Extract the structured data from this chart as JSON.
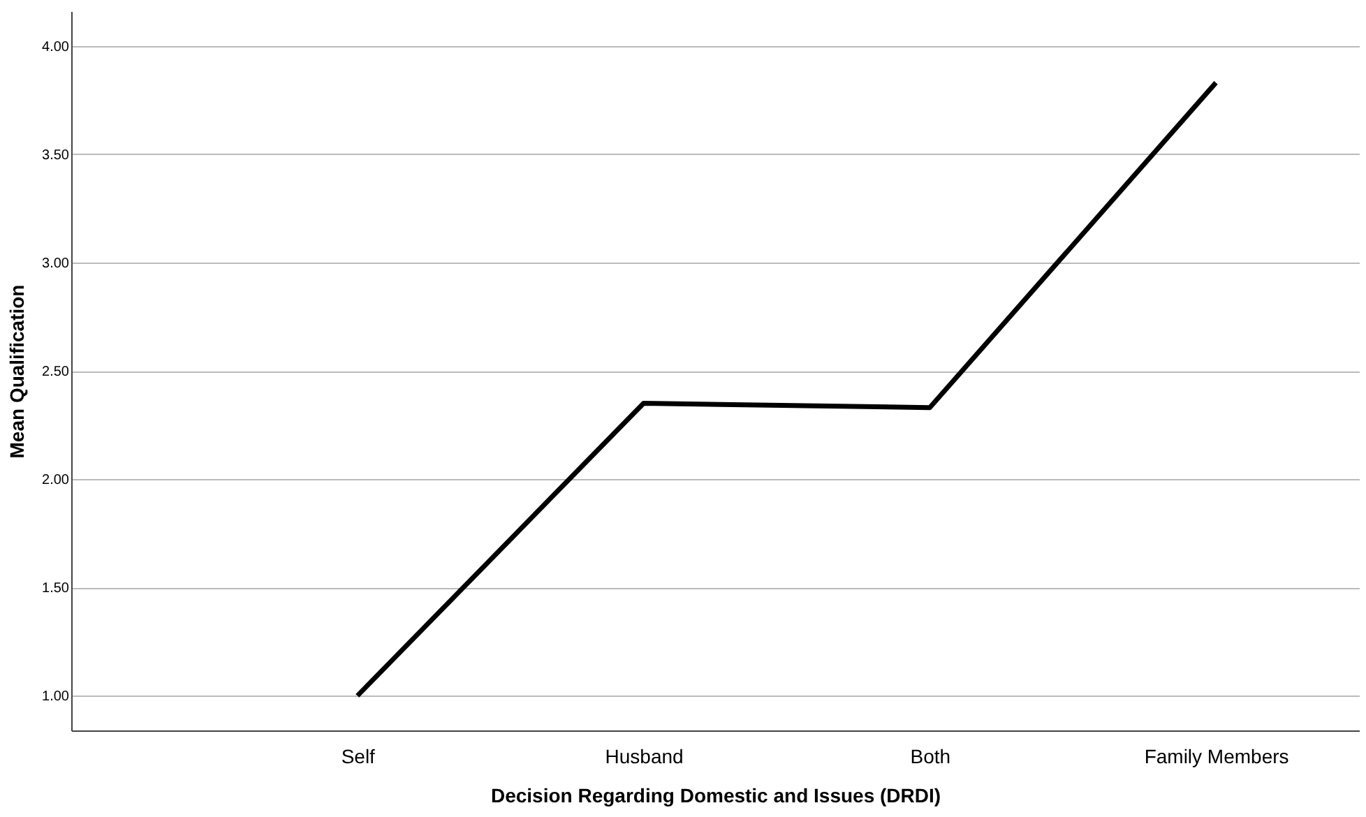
{
  "chart_data": {
    "type": "line",
    "xlabel": "Decision Regarding Domestic and Issues (DRDI)",
    "ylabel": "Mean Qualification",
    "categories": [
      "Self",
      "Husband",
      "Both",
      "Family Members"
    ],
    "series": [
      {
        "color": "#000000",
        "values": [
          1.0,
          2.35,
          2.33,
          3.83
        ]
      }
    ],
    "ylim": [
      0.84,
      4.16
    ],
    "yticks": [
      {
        "value": 1,
        "label": "1.00"
      },
      {
        "value": 1.5,
        "label": "1.50"
      },
      {
        "value": 2,
        "label": "2.00"
      },
      {
        "value": 2.5,
        "label": "2.50"
      },
      {
        "value": 3,
        "label": "3.00"
      },
      {
        "value": 3.5,
        "label": "3.50"
      },
      {
        "value": 4,
        "label": "4.00"
      }
    ],
    "grid": "y",
    "marker": "none",
    "line_style": "solid",
    "legend": false
  }
}
